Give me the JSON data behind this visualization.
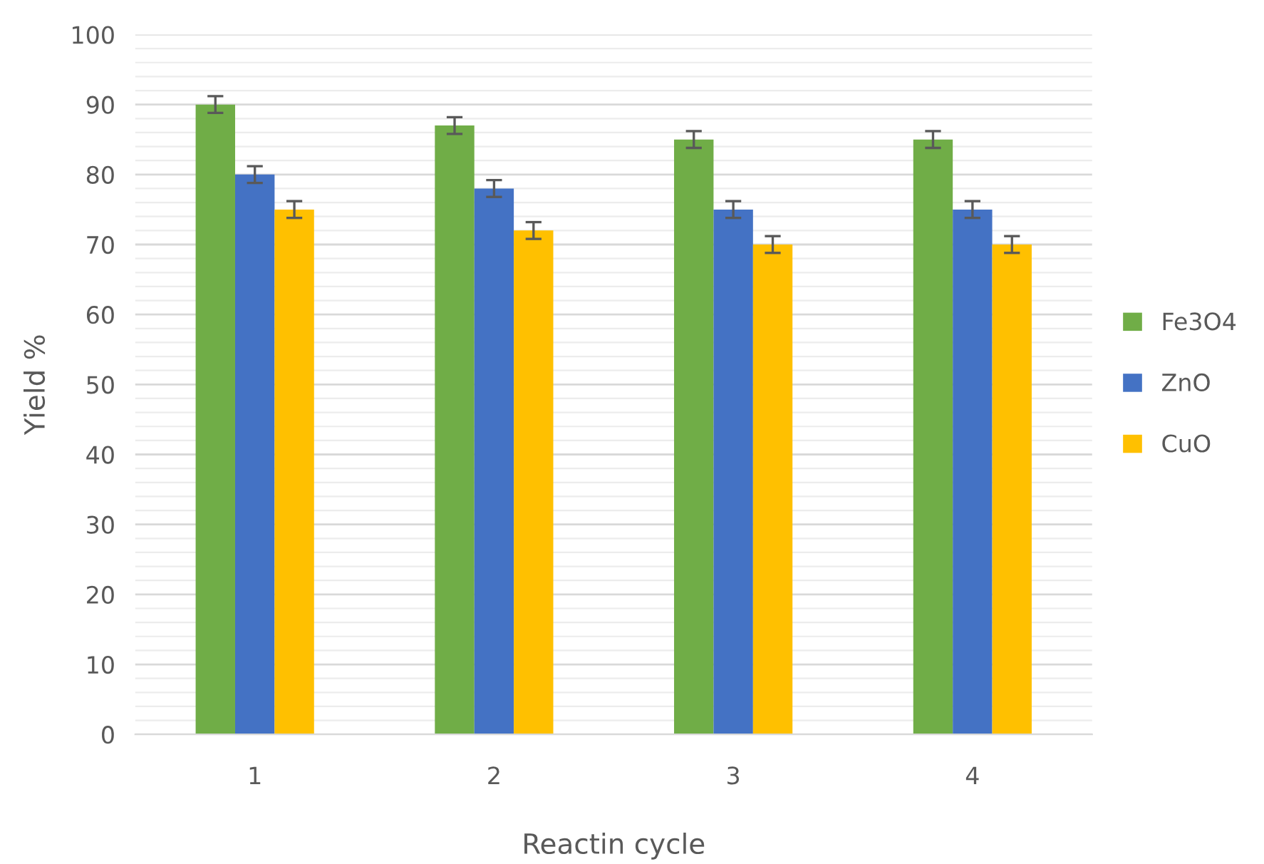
{
  "chart_data": {
    "type": "bar",
    "xlabel": "Reactin cycle",
    "ylabel": "Yield %",
    "categories": [
      "1",
      "2",
      "3",
      "4"
    ],
    "series": [
      {
        "name": "Fe3O4",
        "color": "#70ad47",
        "values": [
          90,
          87,
          85,
          85
        ],
        "errors": [
          1.2,
          1.2,
          1.2,
          1.2
        ]
      },
      {
        "name": "ZnO",
        "color": "#4472c4",
        "values": [
          80,
          78,
          75,
          75
        ],
        "errors": [
          1.2,
          1.2,
          1.2,
          1.2
        ]
      },
      {
        "name": "CuO",
        "color": "#ffc000",
        "values": [
          75,
          72,
          70,
          70
        ],
        "errors": [
          1.2,
          1.2,
          1.2,
          1.2
        ]
      }
    ],
    "ylim": [
      0,
      100
    ],
    "yticks": [
      0,
      10,
      20,
      30,
      40,
      50,
      60,
      70,
      80,
      90,
      100
    ],
    "grid": "y",
    "legend": "right"
  }
}
